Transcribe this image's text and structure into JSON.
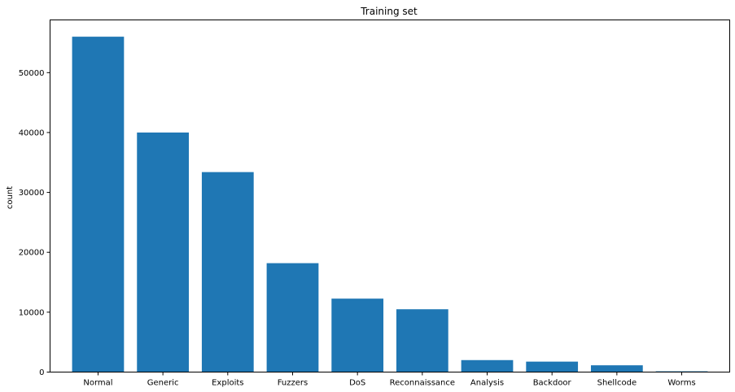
{
  "chart_data": {
    "type": "bar",
    "title": "Training set",
    "xlabel": "",
    "ylabel": "count",
    "categories": [
      "Normal",
      "Generic",
      "Exploits",
      "Fuzzers",
      "DoS",
      "Reconnaissance",
      "Analysis",
      "Backdoor",
      "Shellcode",
      "Worms"
    ],
    "values": [
      56000,
      40000,
      33393,
      18184,
      12264,
      10491,
      2000,
      1746,
      1133,
      130
    ],
    "ylim": [
      0,
      58800
    ],
    "yticks": [
      0,
      10000,
      20000,
      30000,
      40000,
      50000
    ],
    "ytick_labels": [
      "0",
      "10000",
      "20000",
      "30000",
      "40000",
      "50000"
    ],
    "grid": false,
    "legend": "none",
    "bar_color": "#1f77b4"
  }
}
